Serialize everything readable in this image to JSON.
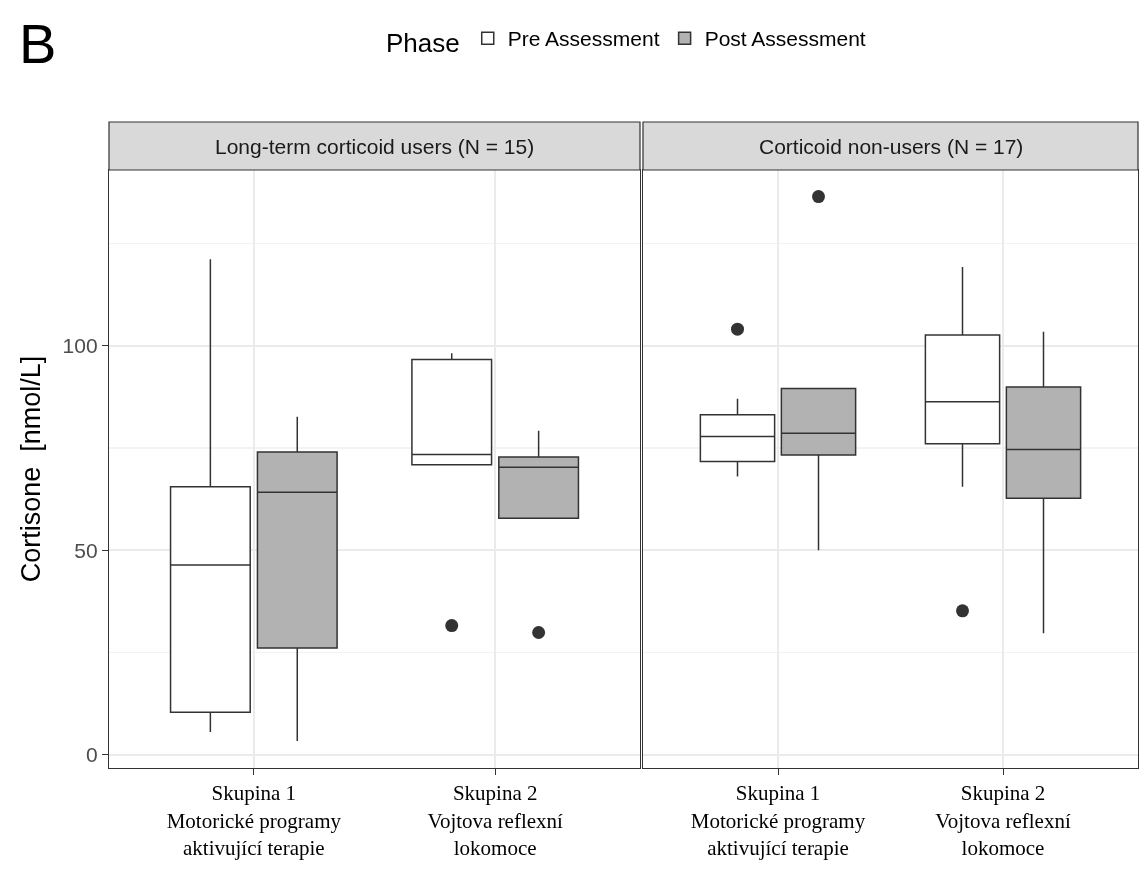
{
  "chart_data": [
    {
      "type": "box",
      "title": "Long-term corticoid users (N = 15)",
      "annotations": [
        "B"
      ],
      "ylabel": "Cortisone  [nmol/L]",
      "legend_title": "Phase",
      "legend": "top",
      "grid": true,
      "categories": [
        "Skupina 1\nMotorické programy\naktivující terapie",
        "Skupina 2\nVojtova reflexní\nlokomoce"
      ],
      "ylim": [
        -3.2,
        142.9
      ],
      "yticks": [
        0,
        50,
        100
      ],
      "series": [
        {
          "name": "Pre Assessment",
          "color": "#ffffff",
          "boxes": [
            {
              "low": 5.6,
              "q1": 10.4,
              "median": 46.4,
              "q3": 65.5,
              "high": 121.1
            },
            {
              "low": 70.9,
              "q1": 70.9,
              "median": 73.4,
              "q3": 96.6,
              "high": 98.1,
              "outliers": [
                31.6
              ]
            }
          ]
        },
        {
          "name": "Post Assessment",
          "color": "#b2b2b2",
          "boxes": [
            {
              "low": 3.4,
              "q1": 26.1,
              "median": 64.2,
              "q3": 74.0,
              "high": 82.6
            },
            {
              "low": 57.8,
              "q1": 57.8,
              "median": 70.3,
              "q3": 72.8,
              "high": 79.2,
              "outliers": [
                29.9
              ]
            }
          ]
        }
      ]
    },
    {
      "type": "box",
      "title": "Corticoid non-users (N = 17)",
      "grid": true,
      "tick_labels": "x",
      "categories": [
        "Skupina 1\nMotorické programy\naktivující terapie",
        "Skupina 2\nVojtova reflexní\nlokomoce"
      ],
      "ylim": [
        -3.2,
        142.9
      ],
      "yticks": [
        0,
        50,
        100
      ],
      "series": [
        {
          "color": "#ffffff",
          "boxes": [
            {
              "low": 68.0,
              "q1": 71.7,
              "median": 77.8,
              "q3": 83.1,
              "high": 87.0,
              "outliers": [
                104.0
              ]
            },
            {
              "low": 65.5,
              "q1": 76.0,
              "median": 86.3,
              "q3": 102.6,
              "high": 119.2,
              "outliers": [
                35.2
              ]
            }
          ]
        },
        {
          "color": "#b2b2b2",
          "boxes": [
            {
              "low": 50.0,
              "q1": 73.3,
              "median": 78.6,
              "q3": 89.5,
              "high": 89.5,
              "outliers": [
                136.4
              ]
            },
            {
              "low": 29.7,
              "q1": 62.7,
              "median": 74.6,
              "q3": 89.9,
              "high": 103.4
            }
          ]
        }
      ]
    }
  ]
}
